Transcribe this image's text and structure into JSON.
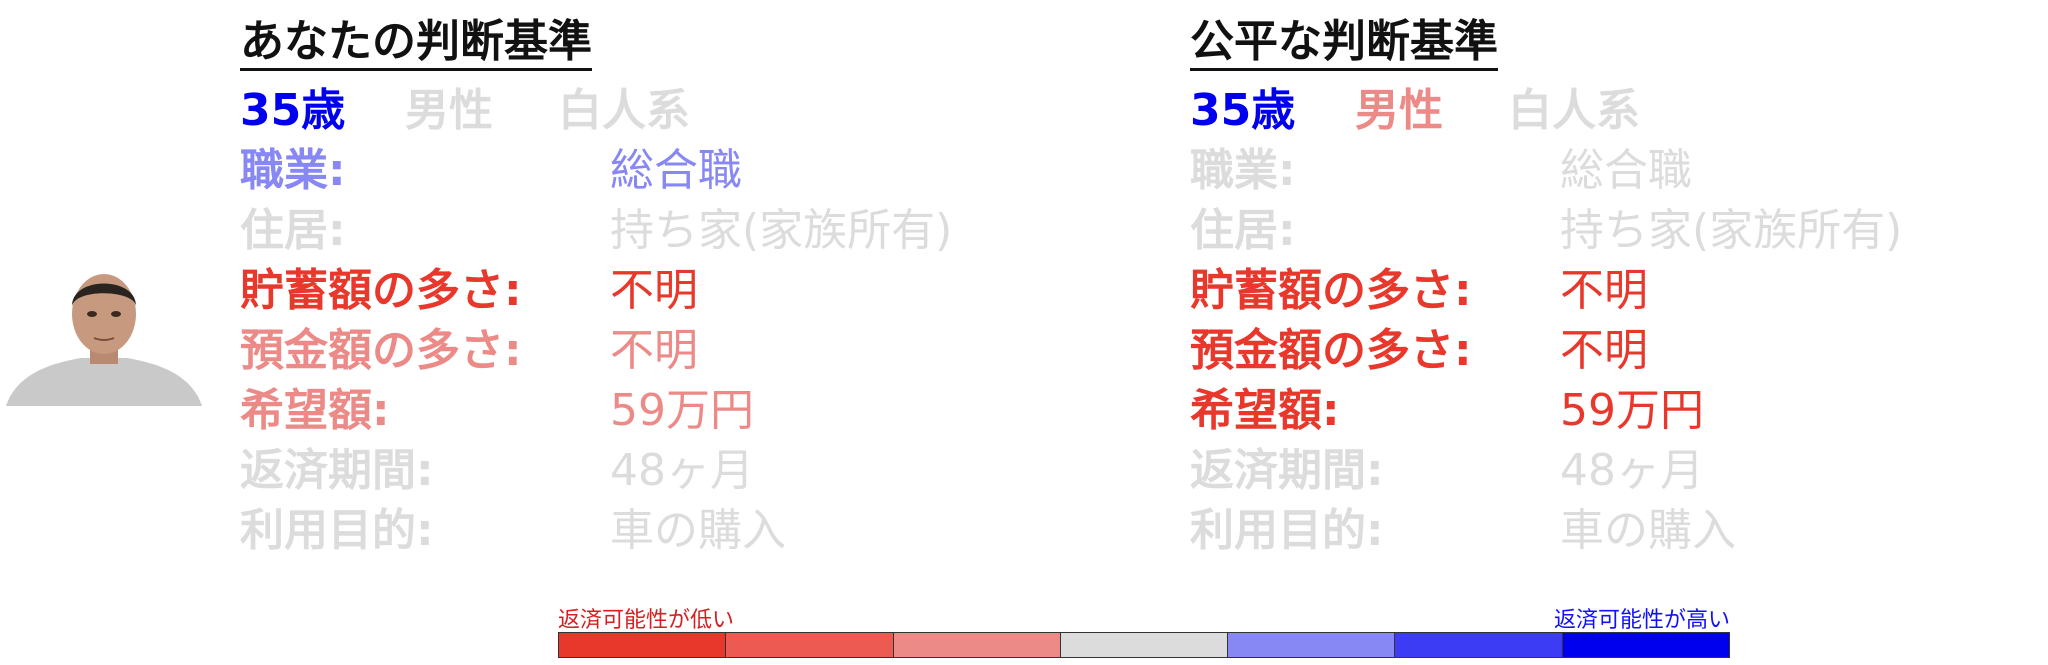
{
  "colors": {
    "strong_red": "#e8382c",
    "mid_red": "#ec6060",
    "light_red": "#ec8a88",
    "gray": "#dcdcdc",
    "light_blue": "#8888f4",
    "mid_blue": "#3c3cf4",
    "strong_blue": "#0000ee"
  },
  "left_panel": {
    "title": "あなたの判断基準",
    "demographics": [
      {
        "text": "35歳",
        "color": "#0000ee"
      },
      {
        "text": "男性",
        "color": "#dcdcdc"
      },
      {
        "text": "白人系",
        "color": "#dcdcdc"
      }
    ],
    "attributes": [
      {
        "label": "職業:",
        "value": "総合職",
        "color": "#8888f4"
      },
      {
        "label": "住居:",
        "value": "持ち家(家族所有)",
        "color": "#dcdcdc"
      },
      {
        "label": "貯蓄額の多さ:",
        "value": "不明",
        "color": "#e8382c"
      },
      {
        "label": "預金額の多さ:",
        "value": "不明",
        "color": "#ec8a88"
      },
      {
        "label": "希望額:",
        "value": "59万円",
        "color": "#ec8a88"
      },
      {
        "label": "返済期間:",
        "value": "48ヶ月",
        "color": "#dcdcdc"
      },
      {
        "label": "利用目的:",
        "value": "車の購入",
        "color": "#dcdcdc"
      }
    ]
  },
  "right_panel": {
    "title": "公平な判断基準",
    "demographics": [
      {
        "text": "35歳",
        "color": "#0000ee"
      },
      {
        "text": "男性",
        "color": "#ec8a88"
      },
      {
        "text": "白人系",
        "color": "#dcdcdc"
      }
    ],
    "attributes": [
      {
        "label": "職業:",
        "value": "総合職",
        "color": "#dcdcdc"
      },
      {
        "label": "住居:",
        "value": "持ち家(家族所有)",
        "color": "#dcdcdc"
      },
      {
        "label": "貯蓄額の多さ:",
        "value": "不明",
        "color": "#e8382c"
      },
      {
        "label": "預金額の多さ:",
        "value": "不明",
        "color": "#e8382c"
      },
      {
        "label": "希望額:",
        "value": "59万円",
        "color": "#e8382c"
      },
      {
        "label": "返済期間:",
        "value": "48ヶ月",
        "color": "#dcdcdc"
      },
      {
        "label": "利用目的:",
        "value": "車の購入",
        "color": "#dcdcdc"
      }
    ]
  },
  "legend": {
    "low_label": "返済可能性が低い",
    "high_label": "返済可能性が高い",
    "scale_colors": [
      "#e8382c",
      "#ec5a52",
      "#ec8a88",
      "#dcdcdc",
      "#8888f4",
      "#3c3cf4",
      "#0000ee"
    ]
  }
}
